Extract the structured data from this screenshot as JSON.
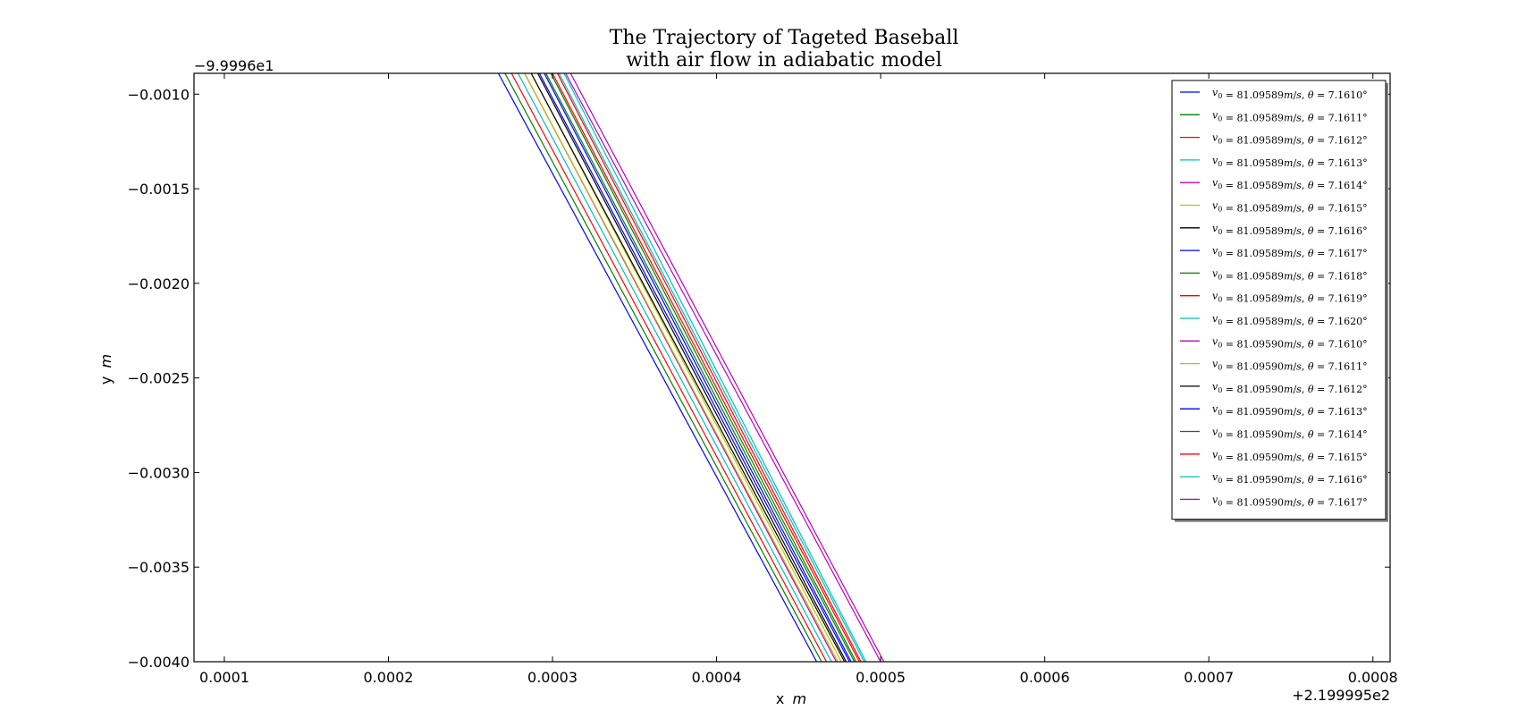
{
  "chart_data": {
    "type": "line",
    "title": "The Trajectory of Tageted Baseball",
    "subtitle": "with air flow in adiabatic model",
    "xlabel_prefix": "x",
    "xlabel_unit": "m",
    "ylabel_prefix": "y",
    "ylabel_unit": "m",
    "x_offset_label": "+2.199995e2",
    "y_offset_label": "−9.9996e1",
    "xlim": [
      8.15e-05,
      0.0008105
    ],
    "ylim": [
      -0.004,
      -0.00089
    ],
    "x_ticks": [
      0.0001,
      0.0002,
      0.0003,
      0.0004,
      0.0005,
      0.0006,
      0.0007,
      0.0008
    ],
    "x_tick_labels": [
      "0.0001",
      "0.0002",
      "0.0003",
      "0.0004",
      "0.0005",
      "0.0006",
      "0.0007",
      "0.0008"
    ],
    "y_ticks": [
      -0.001,
      -0.0015,
      -0.002,
      -0.0025,
      -0.003,
      -0.0035,
      -0.004
    ],
    "y_tick_labels": [
      "−0.0010",
      "−0.0015",
      "−0.0020",
      "−0.0025",
      "−0.0030",
      "−0.0035",
      "−0.0040"
    ],
    "grid": false,
    "legend_position": "top-right",
    "series": [
      {
        "name": "v₀ = 81.09589m/s, θ = 7.1610°",
        "color": "#0000ff",
        "x": [
          0.000267,
          0.000461
        ],
        "y": [
          -0.00089,
          -0.004
        ]
      },
      {
        "name": "v₀ = 81.09589m/s, θ = 7.1611°",
        "color": "#008000",
        "x": [
          0.000271,
          0.000464
        ],
        "y": [
          -0.00089,
          -0.004
        ]
      },
      {
        "name": "v₀ = 81.09589m/s, θ = 7.1612°",
        "color": "#ff0000",
        "x": [
          0.000275,
          0.000467
        ],
        "y": [
          -0.00089,
          -0.004
        ]
      },
      {
        "name": "v₀ = 81.09589m/s, θ = 7.1613°",
        "color": "#00bfbf",
        "x": [
          0.000279,
          0.00047
        ],
        "y": [
          -0.00089,
          -0.004
        ]
      },
      {
        "name": "v₀ = 81.09589m/s, θ = 7.1614°",
        "color": "#bf00bf",
        "x": [
          0.000283,
          0.000473
        ],
        "y": [
          -0.00089,
          -0.004
        ]
      },
      {
        "name": "v₀ = 81.09589m/s, θ = 7.1615°",
        "color": "#bfbf00",
        "x": [
          0.000287,
          0.000476
        ],
        "y": [
          -0.00089,
          -0.004
        ]
      },
      {
        "name": "v₀ = 81.09589m/s, θ = 7.1616°",
        "color": "#000000",
        "x": [
          0.000291,
          0.000479
        ],
        "y": [
          -0.00089,
          -0.004
        ]
      },
      {
        "name": "v₀ = 81.09589m/s, θ = 7.1617°",
        "color": "#0000ff",
        "x": [
          0.000295,
          0.000482
        ],
        "y": [
          -0.00089,
          -0.004
        ]
      },
      {
        "name": "v₀ = 81.09589m/s, θ = 7.1618°",
        "color": "#008000",
        "x": [
          0.000299,
          0.000485
        ],
        "y": [
          -0.00089,
          -0.004
        ]
      },
      {
        "name": "v₀ = 81.09589m/s, θ = 7.1619°",
        "color": "#ff0000",
        "x": [
          0.000303,
          0.000488
        ],
        "y": [
          -0.00089,
          -0.004
        ]
      },
      {
        "name": "v₀ = 81.09589m/s, θ = 7.1620°",
        "color": "#00bfbf",
        "x": [
          0.000307,
          0.000491
        ],
        "y": [
          -0.00089,
          -0.004
        ]
      },
      {
        "name": "v₀ = 81.09590m/s, θ = 7.1610°",
        "color": "#bf00bf",
        "x": [
          0.000311,
          0.000502
        ],
        "y": [
          -0.00089,
          -0.004
        ]
      },
      {
        "name": "v₀ = 81.09590m/s, θ = 7.1611°",
        "color": "#bfbf00",
        "x": [
          0.000283,
          0.000474
        ],
        "y": [
          -0.00089,
          -0.004
        ]
      },
      {
        "name": "v₀ = 81.09590m/s, θ = 7.1612°",
        "color": "#000000",
        "x": [
          0.000287,
          0.000478
        ],
        "y": [
          -0.00089,
          -0.004
        ]
      },
      {
        "name": "v₀ = 81.09590m/s, θ = 7.1613°",
        "color": "#0000ff",
        "x": [
          0.000292,
          0.000481
        ],
        "y": [
          -0.00089,
          -0.004
        ]
      },
      {
        "name": "v₀ = 81.09590m/s, θ = 7.1614°",
        "color": "#008000",
        "x": [
          0.000296,
          0.000484
        ],
        "y": [
          -0.00089,
          -0.004
        ]
      },
      {
        "name": "v₀ = 81.09590m/s, θ = 7.1615°",
        "color": "#ff0000",
        "x": [
          0.0003,
          0.000487
        ],
        "y": [
          -0.00089,
          -0.004
        ]
      },
      {
        "name": "v₀ = 81.09590m/s, θ = 7.1616°",
        "color": "#00bfbf",
        "x": [
          0.000304,
          0.00049
        ],
        "y": [
          -0.00089,
          -0.004
        ]
      },
      {
        "name": "v₀ = 81.09590m/s, θ = 7.1617°",
        "color": "#bf00bf",
        "x": [
          0.000308,
          0.0005
        ],
        "y": [
          -0.00089,
          -0.004
        ]
      }
    ],
    "legend_entries": [
      {
        "v0": "81.09589",
        "theta": "7.1610"
      },
      {
        "v0": "81.09589",
        "theta": "7.1611"
      },
      {
        "v0": "81.09589",
        "theta": "7.1612"
      },
      {
        "v0": "81.09589",
        "theta": "7.1613"
      },
      {
        "v0": "81.09589",
        "theta": "7.1614"
      },
      {
        "v0": "81.09589",
        "theta": "7.1615"
      },
      {
        "v0": "81.09589",
        "theta": "7.1616"
      },
      {
        "v0": "81.09589",
        "theta": "7.1617"
      },
      {
        "v0": "81.09589",
        "theta": "7.1618"
      },
      {
        "v0": "81.09589",
        "theta": "7.1619"
      },
      {
        "v0": "81.09589",
        "theta": "7.1620"
      },
      {
        "v0": "81.09590",
        "theta": "7.1610"
      },
      {
        "v0": "81.09590",
        "theta": "7.1611"
      },
      {
        "v0": "81.09590",
        "theta": "7.1612"
      },
      {
        "v0": "81.09590",
        "theta": "7.1613"
      },
      {
        "v0": "81.09590",
        "theta": "7.1614"
      },
      {
        "v0": "81.09590",
        "theta": "7.1615"
      },
      {
        "v0": "81.09590",
        "theta": "7.1616"
      },
      {
        "v0": "81.09590",
        "theta": "7.1617"
      }
    ]
  }
}
